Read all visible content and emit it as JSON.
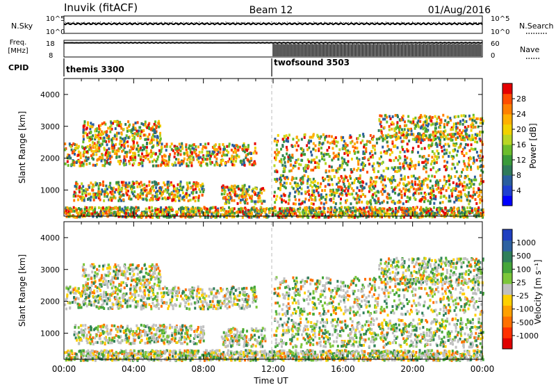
{
  "header": {
    "station": "Inuvik (fitACF)",
    "beam": "Beam 12",
    "date": "01/Aug/2016"
  },
  "chart_data": [
    {
      "type": "line",
      "panel": "noise",
      "left_label": "N.Sky",
      "right_label": "N.Search",
      "left_ticks": [
        "10^5",
        "10^0"
      ],
      "right_ticks": [
        "10^5",
        "10^0"
      ],
      "right_legend_style": "dotted",
      "series": [
        {
          "name": "N.Sky",
          "style": "solid",
          "level": 0.55,
          "color": "#000000"
        },
        {
          "name": "N.Search",
          "style": "dotted",
          "level": 0.6,
          "color": "#000000"
        }
      ]
    },
    {
      "type": "line",
      "panel": "frequency",
      "left_label_line1": "Freq.",
      "left_label_line2": "[MHz]",
      "right_label": "Nave",
      "left_ticks": [
        "18",
        "8"
      ],
      "right_ticks": [
        "60",
        "0"
      ],
      "right_legend_style": "dotted",
      "freq_level": 0.85,
      "nave_from_hour": 12,
      "nave_range": [
        0.0,
        0.8
      ]
    },
    {
      "type": "table",
      "panel": "cpid",
      "label": "CPID",
      "segments": [
        {
          "name": "themis 3300",
          "start_hour": 0
        },
        {
          "name": "twofsound 3503",
          "start_hour": 12
        }
      ]
    },
    {
      "type": "heatmap",
      "panel": "power",
      "ylabel": "Slant Range [km]",
      "yticks": [
        "1000",
        "2000",
        "3000",
        "4000"
      ],
      "ylim": [
        180,
        4500
      ],
      "xlim_hours": [
        0,
        24
      ],
      "colorbar": {
        "label": "Power [dB]",
        "ticks": [
          "4",
          "8",
          "12",
          "16",
          "20",
          "24",
          "28"
        ],
        "range": [
          0,
          32
        ],
        "colors": [
          "#0000ff",
          "#1f3fd0",
          "#2a5e9e",
          "#2f7a5a",
          "#3a9a3a",
          "#6cbd2c",
          "#b9d625",
          "#f2d200",
          "#ffb000",
          "#ff8000",
          "#ff4d00",
          "#e50000"
        ]
      }
    },
    {
      "type": "heatmap",
      "panel": "velocity",
      "ylabel": "Slant Range [km]",
      "yticks": [
        "1000",
        "2000",
        "3000",
        "4000"
      ],
      "ylim": [
        180,
        4500
      ],
      "xlim_hours": [
        0,
        24
      ],
      "xticks": [
        "00:00",
        "04:00",
        "08:00",
        "12:00",
        "16:00",
        "20:00",
        "00:00"
      ],
      "xlabel": "Time UT",
      "colorbar": {
        "label": "Velocity [m s⁻¹]",
        "ticks": [
          "1000",
          "500",
          "100",
          "25",
          "-25",
          "-100",
          "-500",
          "-1000"
        ],
        "colors": [
          "#1f3fc0",
          "#2e62a0",
          "#2f7f5a",
          "#45a53a",
          "#7cc63a",
          "#c0c0c0",
          "#ffd000",
          "#ffa000",
          "#ff7000",
          "#ff3000",
          "#e00000"
        ]
      }
    }
  ]
}
